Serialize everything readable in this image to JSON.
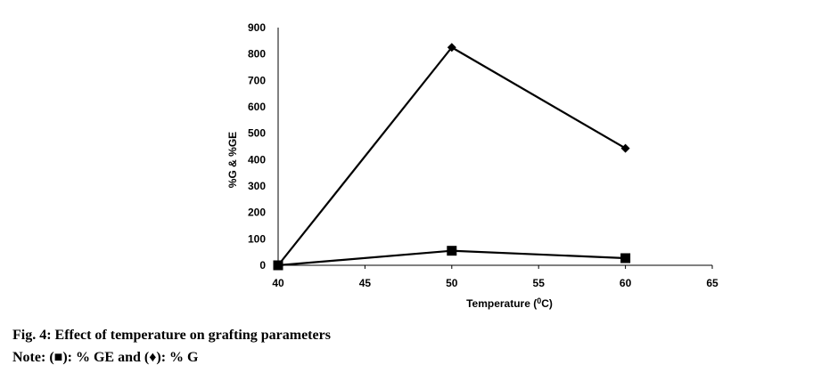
{
  "chart_data": {
    "type": "line",
    "xlabel": "Temperature (",
    "xlabel_sup": "0",
    "xlabel_suffix": "C)",
    "ylabel": "%G & %GE",
    "xlim": [
      40,
      65
    ],
    "ylim": [
      0,
      900
    ],
    "x_ticks": [
      40,
      45,
      50,
      55,
      60,
      65
    ],
    "y_ticks": [
      0,
      100,
      200,
      300,
      400,
      500,
      600,
      700,
      800,
      900
    ],
    "grid": false,
    "series": [
      {
        "marker": "diamond",
        "color": "#000000",
        "x": [
          40,
          50,
          60
        ],
        "y": [
          0,
          825,
          443
        ]
      },
      {
        "marker": "square",
        "color": "#000000",
        "x": [
          40,
          50,
          60
        ],
        "y": [
          0,
          55,
          27
        ]
      }
    ]
  },
  "caption": {
    "title": "Fig. 4: Effect of temperature on grafting parameters",
    "note_prefix": "Note: (",
    "note_square_symbol": "■",
    "note_mid": "): % GE and (",
    "note_diamond_symbol": "♦",
    "note_suffix": "): % G"
  }
}
